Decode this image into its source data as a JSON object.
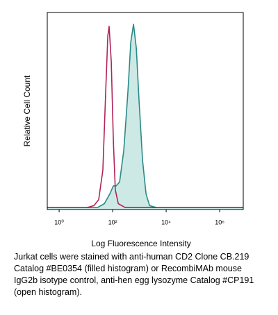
{
  "chart_data": {
    "type": "line",
    "xlabel": "Log Fluorescence Intensity",
    "ylabel": "Relative Cell Count",
    "xscale": "log",
    "xlim": [
      0.36,
      7600000
    ],
    "ylim": [
      0,
      100
    ],
    "xticks": [
      {
        "value": 1,
        "label": "10⁰"
      },
      {
        "value": 100,
        "label": "10²"
      },
      {
        "value": 10000,
        "label": "10⁴"
      },
      {
        "value": 1000000,
        "label": "10⁶"
      }
    ],
    "series": [
      {
        "name": "CD2 Clone CB.219",
        "color": "#2a8a87",
        "fill": "#cde9e5",
        "x": [
          0.36,
          27,
          49,
          79,
          106,
          135,
          182,
          261,
          373,
          476,
          603,
          763,
          970,
          1310,
          1770,
          2390,
          4340,
          7600000
        ],
        "values": [
          1,
          1,
          3,
          8,
          12,
          12,
          14,
          30,
          60,
          85,
          94,
          82,
          55,
          25,
          8,
          2,
          1,
          1
        ]
      },
      {
        "name": "IgG2b isotype control",
        "color": "#b0245a",
        "fill": null,
        "x": [
          0.36,
          11,
          20,
          30,
          43,
          55,
          66,
          74,
          89,
          106,
          126,
          162,
          295,
          7600000
        ],
        "values": [
          1,
          1,
          2,
          5,
          20,
          60,
          88,
          93,
          75,
          35,
          10,
          3,
          1,
          1
        ]
      }
    ],
    "caption": [
      "Jurkat cells were stained with anti-human CD2 Clone CB.219",
      "Catalog #BE0354 (filled histogram) or RecombiMAb mouse",
      "IgG2b isotype control, anti-hen egg lysozyme Catalog #CP191",
      "(open histogram)."
    ]
  }
}
